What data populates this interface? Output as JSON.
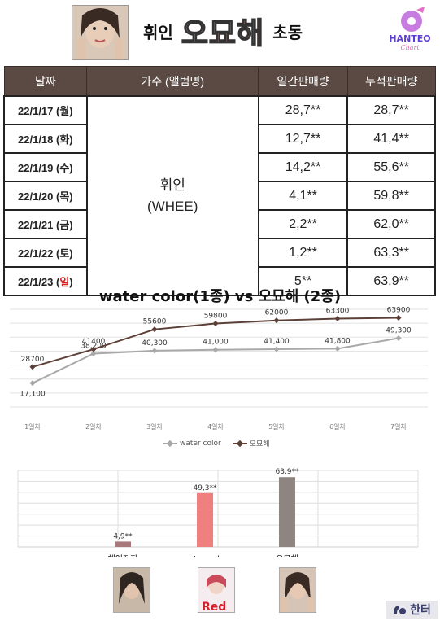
{
  "header": {
    "artist": "휘인",
    "album": "오묘해",
    "suffix": "초동",
    "logo_text": "HANTEO",
    "logo_sub": "Chart"
  },
  "table": {
    "headers": [
      "날짜",
      "가수 (앨범명)",
      "일간판매량",
      "누적판매량"
    ],
    "artist_name": "휘인",
    "artist_en": "(WHEE)",
    "rows": [
      {
        "date": "22/1/17 (월)",
        "daily": "28,7**",
        "total": "28,7**"
      },
      {
        "date": "22/1/18 (화)",
        "daily": "12,7**",
        "total": "41,4**"
      },
      {
        "date": "22/1/19 (수)",
        "daily": "14,2**",
        "total": "55,6**"
      },
      {
        "date": "22/1/20 (목)",
        "daily": "4,1**",
        "total": "59,8**"
      },
      {
        "date": "22/1/21 (금)",
        "daily": "2,2**",
        "total": "62,0**"
      },
      {
        "date": "22/1/22 (토)",
        "daily": "1,2**",
        "total": "63,3**"
      }
    ],
    "last_row": {
      "date_prefix": "22/1/23 (",
      "date_day": "일",
      "date_suffix": ")",
      "daily": "5**",
      "total": "63,9**"
    }
  },
  "chart_data": [
    {
      "type": "line",
      "title": "water color(1종) vs 오묘해 (2종)",
      "categories": [
        "1일차",
        "2일차",
        "3일차",
        "4일차",
        "5일차",
        "6일차",
        "7일차"
      ],
      "series": [
        {
          "name": "water color",
          "values": [
            17100,
            38200,
            40300,
            41000,
            41400,
            41800,
            49300
          ],
          "labels": [
            "17,100",
            "38,200",
            "40,300",
            "41,000",
            "41,400",
            "41,800",
            "49,300"
          ],
          "color": "#a9a9a9"
        },
        {
          "name": "오묘해",
          "values": [
            28700,
            41400,
            55600,
            59800,
            62000,
            63300,
            63900
          ],
          "labels": [
            "28700",
            "41400",
            "55600",
            "59800",
            "62000",
            "63300",
            "63900"
          ],
          "color": "#5c4038"
        }
      ],
      "grid": true,
      "legend": "bottom"
    },
    {
      "type": "bar",
      "categories": [
        "헤어지자",
        "water color",
        "오묘해"
      ],
      "values": [
        4900,
        49300,
        63900
      ],
      "labels": [
        "4,9**",
        "49,3**",
        "63,9**"
      ],
      "colors": [
        "#a9787a",
        "#f08080",
        "#8e8580"
      ],
      "grid": true
    }
  ],
  "footer": {
    "brand": "한터"
  }
}
